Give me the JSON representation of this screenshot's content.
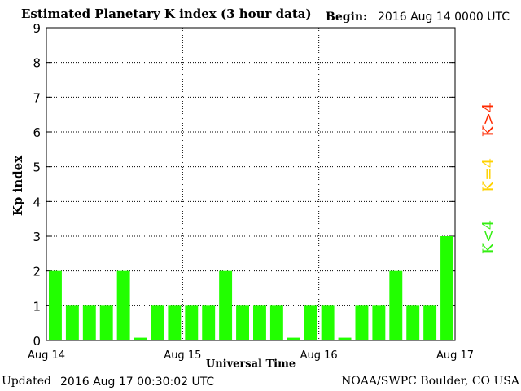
{
  "header": {
    "title": "Estimated Planetary K index (3 hour data)",
    "begin_label": "Begin:",
    "begin_value": "2016 Aug 14 0000 UTC"
  },
  "footer": {
    "updated_label": "Updated",
    "updated_value": "2016 Aug 17 00:30:02 UTC",
    "credit": "NOAA/SWPC Boulder, CO USA"
  },
  "legend": [
    {
      "label": "K>4",
      "color": "#ff2a00"
    },
    {
      "label": "K=4",
      "color": "#ffd200"
    },
    {
      "label": "K<4",
      "color": "#33ee11"
    }
  ],
  "chart_data": {
    "type": "bar",
    "title": "Estimated Planetary K index (3 hour data)",
    "xlabel": "Universal Time",
    "ylabel": "Kp index",
    "ylim": [
      0,
      9
    ],
    "yticks": [
      "0",
      "1",
      "2",
      "3",
      "4",
      "5",
      "6",
      "7",
      "8",
      "9"
    ],
    "xticks": [
      "Aug 14",
      "Aug 15",
      "Aug 16",
      "Aug 17"
    ],
    "categories": [
      "Aug 14 00",
      "Aug 14 03",
      "Aug 14 06",
      "Aug 14 09",
      "Aug 14 12",
      "Aug 14 15",
      "Aug 14 18",
      "Aug 14 21",
      "Aug 15 00",
      "Aug 15 03",
      "Aug 15 06",
      "Aug 15 09",
      "Aug 15 12",
      "Aug 15 15",
      "Aug 15 18",
      "Aug 15 21",
      "Aug 16 00",
      "Aug 16 03",
      "Aug 16 06",
      "Aug 16 09",
      "Aug 16 12",
      "Aug 16 15",
      "Aug 16 18",
      "Aug 16 21"
    ],
    "values": [
      2,
      1,
      1,
      1,
      2,
      0,
      1,
      1,
      1,
      1,
      2,
      1,
      1,
      1,
      0,
      1,
      1,
      0,
      1,
      1,
      2,
      1,
      1,
      3
    ],
    "bar_color": "#22ff00",
    "grid": true
  }
}
